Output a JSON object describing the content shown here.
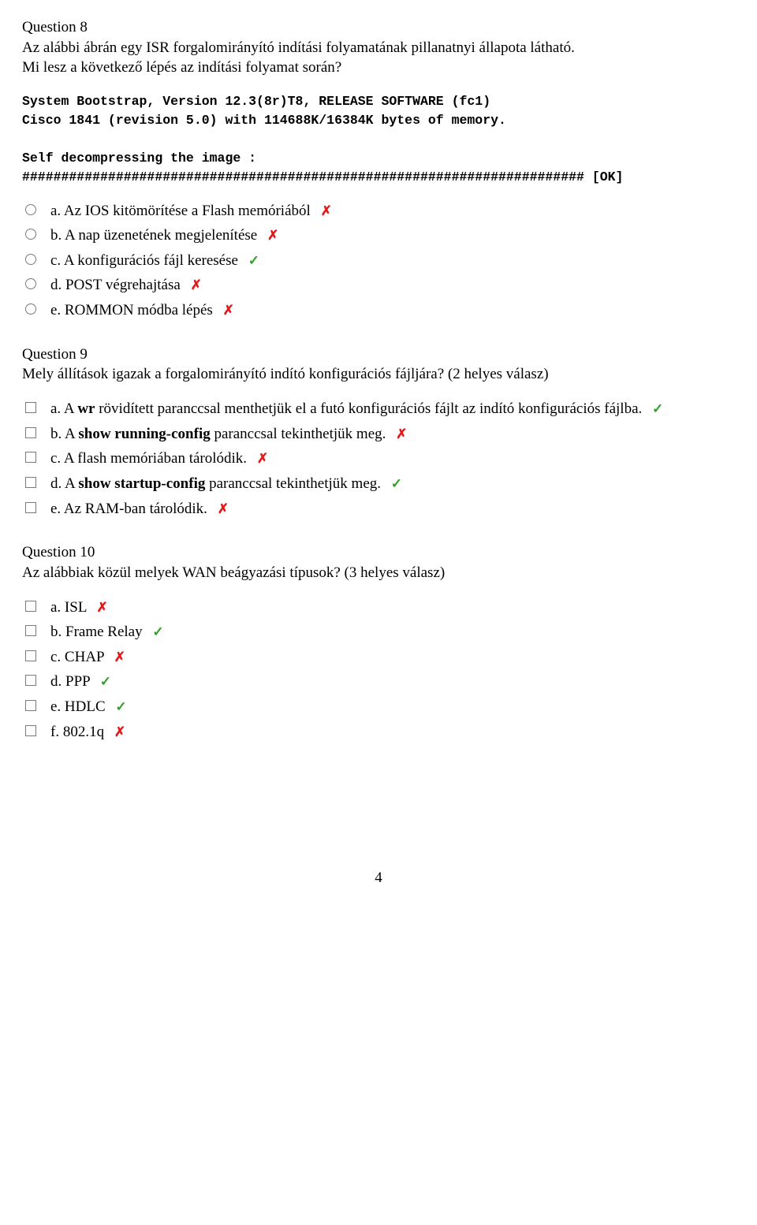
{
  "marks": {
    "correct_char": "✓",
    "incorrect_char": "✗",
    "correct_color": "#33a02c",
    "incorrect_color": "#e31a1c"
  },
  "console": {
    "line1": "System Bootstrap, Version 12.3(8r)T8, RELEASE SOFTWARE (fc1)",
    "line2": "Cisco 1841 (revision 5.0) with 114688K/16384K bytes of memory.",
    "line3": "",
    "line4": "Self decompressing the image :",
    "line5": "######################################################################## [OK]"
  },
  "q8": {
    "heading": "Question 8",
    "text_line1": "Az alábbi ábrán egy ISR forgalomirányító indítási folyamatának pillanatnyi állapota látható.",
    "text_line2": "Mi lesz a következő lépés az indítási folyamat során?",
    "options": {
      "a": {
        "text": "a. Az IOS kitömörítése a Flash memóriából",
        "mark": "incorrect",
        "bold": false
      },
      "b": {
        "text": "b. A nap üzenetének megjelenítése",
        "mark": "incorrect",
        "bold": false
      },
      "c": {
        "text": "c. A konfigurációs fájl keresése",
        "mark": "correct",
        "bold": false
      },
      "d": {
        "text": "d. POST végrehajtása",
        "mark": "incorrect",
        "bold": false
      },
      "e": {
        "text": "e. ROMMON módba lépés",
        "mark": "incorrect",
        "bold": false
      }
    }
  },
  "q9": {
    "heading": "Question 9",
    "text_line1": "Mely állítások igazak a forgalomirányító indító konfigurációs fájljára? (2 helyes válasz)",
    "options": {
      "a": {
        "pre": "a. A ",
        "bold": "wr",
        "post": " rövidített paranccsal menthetjük el a futó konfigurációs fájlt az indító konfigurációs fájlba.",
        "mark": "correct",
        "html": true
      },
      "b": {
        "pre": "b. A ",
        "bold": "show running-config",
        "post": " paranccsal tekinthetjük meg.",
        "mark": "incorrect",
        "html": true
      },
      "c": {
        "text": "c. A flash memóriában tárolódik.",
        "mark": "incorrect",
        "html": false
      },
      "d": {
        "pre": "d. A ",
        "bold": "show startup-config",
        "post": " paranccsal tekinthetjük meg.",
        "mark": "correct",
        "html": true
      },
      "e": {
        "text": "e. Az RAM-ban tárolódik.",
        "mark": "incorrect",
        "html": false
      }
    }
  },
  "q10": {
    "heading": "Question 10",
    "text_line1": "Az alábbiak közül melyek WAN beágyazási típusok? (3 helyes válasz)",
    "options": {
      "a": {
        "text": "a. ISL",
        "mark": "incorrect"
      },
      "b": {
        "text": "b. Frame Relay",
        "mark": "correct"
      },
      "c": {
        "text": "c. CHAP",
        "mark": "incorrect"
      },
      "d": {
        "text": "d. PPP",
        "mark": "correct"
      },
      "e": {
        "text": "e. HDLC",
        "mark": "correct"
      },
      "f": {
        "text": "f. 802.1q",
        "mark": "incorrect"
      }
    }
  },
  "page_number": "4"
}
